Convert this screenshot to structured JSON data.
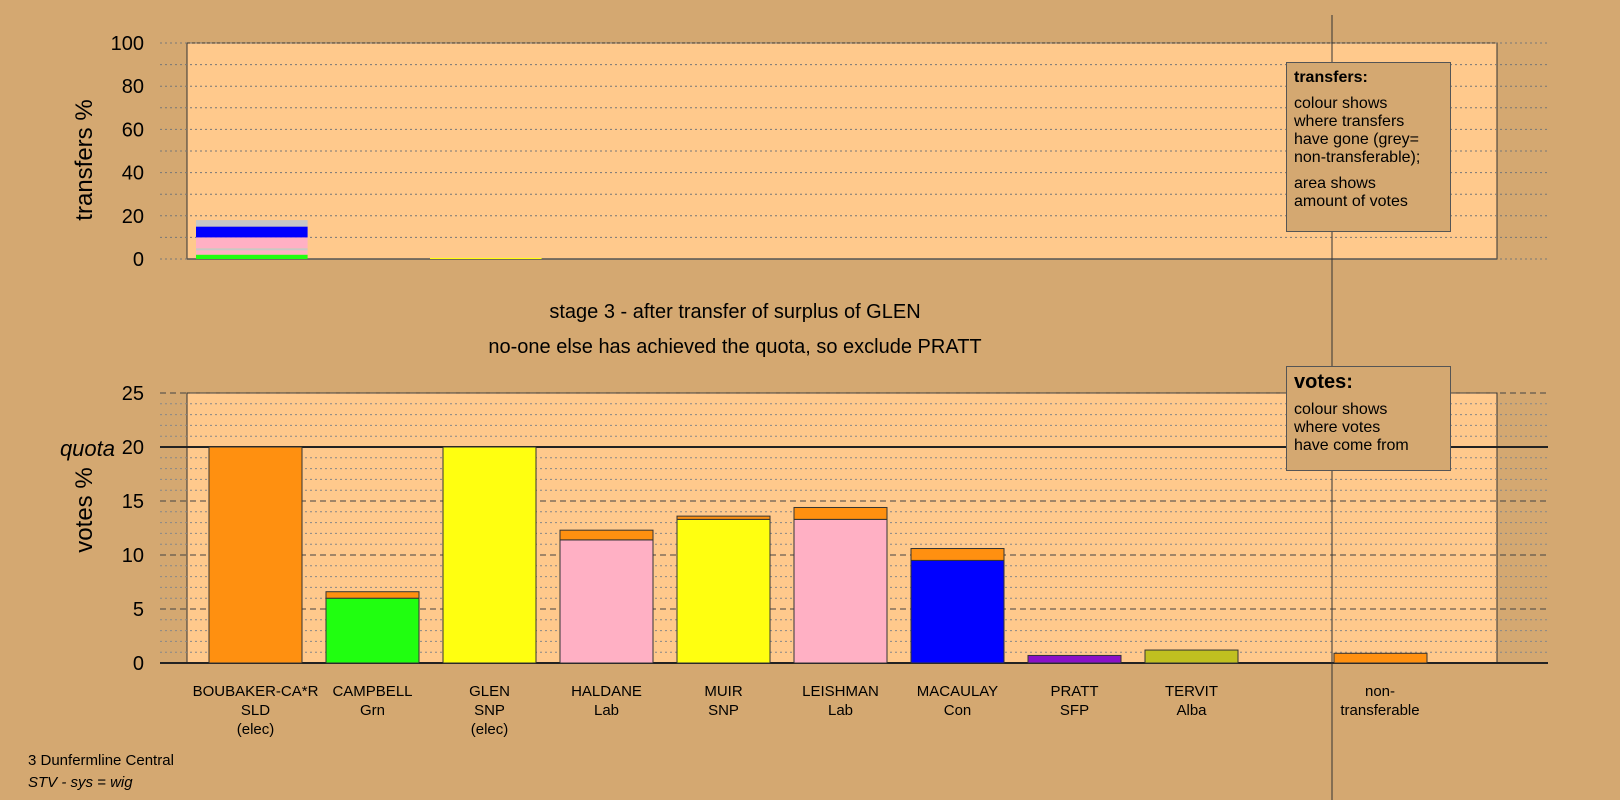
{
  "colors": {
    "background": "#D4A871",
    "plot_background": "#FFC98C",
    "SLD": "#FF9010",
    "Grn": "#20FF10",
    "SNP": "#FFFF10",
    "Lab": "#FFB0C4",
    "Con": "#0000FF",
    "SFP": "#8A10C8",
    "Alba": "#C0C020",
    "non_transferable": "#C8C8C8"
  },
  "title_lines": [
    "stage 3 - after transfer of surplus of GLEN",
    "no-one else has achieved the quota, so exclude PRATT"
  ],
  "legend_transfers": {
    "heading": "transfers:",
    "line1": "colour shows",
    "line2": "where transfers",
    "line3": "have gone (grey=",
    "line4": "non-transferable);",
    "line5": "area shows",
    "line6": "amount of votes"
  },
  "legend_votes": {
    "heading": "votes:",
    "line1": "colour shows",
    "line2": "where votes",
    "line3": "have come from"
  },
  "footer": {
    "ward": "3 Dunfermline Central",
    "system": "STV - sys = wig"
  },
  "chart_data": [
    {
      "type": "bar",
      "name": "transfers",
      "ylabel": "transfers %",
      "ylim": [
        0,
        100
      ],
      "yticks": [
        0,
        20,
        40,
        60,
        80,
        100
      ],
      "grid": true,
      "categories": [
        "BOUBAKER-CA*R",
        "CAMPBELL",
        "GLEN",
        "HALDANE",
        "MUIR",
        "LEISHMAN",
        "MACAULAY",
        "PRATT",
        "TERVIT",
        "non-transferable"
      ],
      "stacks": [
        {
          "category": "BOUBAKER-CA*R",
          "segments": [
            {
              "party": "Grn",
              "value": 2
            },
            {
              "party": "Lab",
              "value": 2
            },
            {
              "party": "non_transferable",
              "value": 1
            },
            {
              "party": "Lab",
              "value": 5
            },
            {
              "party": "Con",
              "value": 5
            },
            {
              "party": "non_transferable",
              "value": 3
            }
          ]
        },
        {
          "category": "GLEN",
          "segments": [
            {
              "party": "SNP",
              "value": 0.5
            }
          ]
        }
      ]
    },
    {
      "type": "bar",
      "name": "votes",
      "ylabel": "votes %",
      "ylim": [
        0,
        25
      ],
      "yticks": [
        0,
        5,
        10,
        15,
        20,
        25
      ],
      "quota": 20,
      "quota_label": "quota",
      "grid": true,
      "candidates": [
        {
          "name": "BOUBAKER-CA*R",
          "party": "SLD",
          "status": "(elec)",
          "segments": [
            {
              "party": "SLD",
              "value": 20.0
            }
          ]
        },
        {
          "name": "CAMPBELL",
          "party": "Grn",
          "status": "",
          "segments": [
            {
              "party": "Grn",
              "value": 6.0
            },
            {
              "party": "SLD",
              "value": 0.6
            }
          ]
        },
        {
          "name": "GLEN",
          "party": "SNP",
          "status": "(elec)",
          "segments": [
            {
              "party": "SNP",
              "value": 20.0
            }
          ]
        },
        {
          "name": "HALDANE",
          "party": "Lab",
          "status": "",
          "segments": [
            {
              "party": "Lab",
              "value": 11.4
            },
            {
              "party": "SLD",
              "value": 0.9
            }
          ]
        },
        {
          "name": "MUIR",
          "party": "SNP",
          "status": "",
          "segments": [
            {
              "party": "SNP",
              "value": 13.3
            },
            {
              "party": "SLD",
              "value": 0.3
            }
          ]
        },
        {
          "name": "LEISHMAN",
          "party": "Lab",
          "status": "",
          "segments": [
            {
              "party": "Lab",
              "value": 13.3
            },
            {
              "party": "SLD",
              "value": 1.1
            }
          ]
        },
        {
          "name": "MACAULAY",
          "party": "Con",
          "status": "",
          "segments": [
            {
              "party": "Con",
              "value": 9.5
            },
            {
              "party": "SLD",
              "value": 1.1
            }
          ]
        },
        {
          "name": "PRATT",
          "party": "SFP",
          "status": "",
          "segments": [
            {
              "party": "SFP",
              "value": 0.7
            }
          ]
        },
        {
          "name": "TERVIT",
          "party": "Alba",
          "status": "",
          "segments": [
            {
              "party": "Alba",
              "value": 1.2
            }
          ]
        }
      ],
      "non_transferable": {
        "line1": "non-",
        "line2": "transferable",
        "segments": [
          {
            "party": "SLD",
            "value": 0.9
          }
        ]
      }
    }
  ]
}
